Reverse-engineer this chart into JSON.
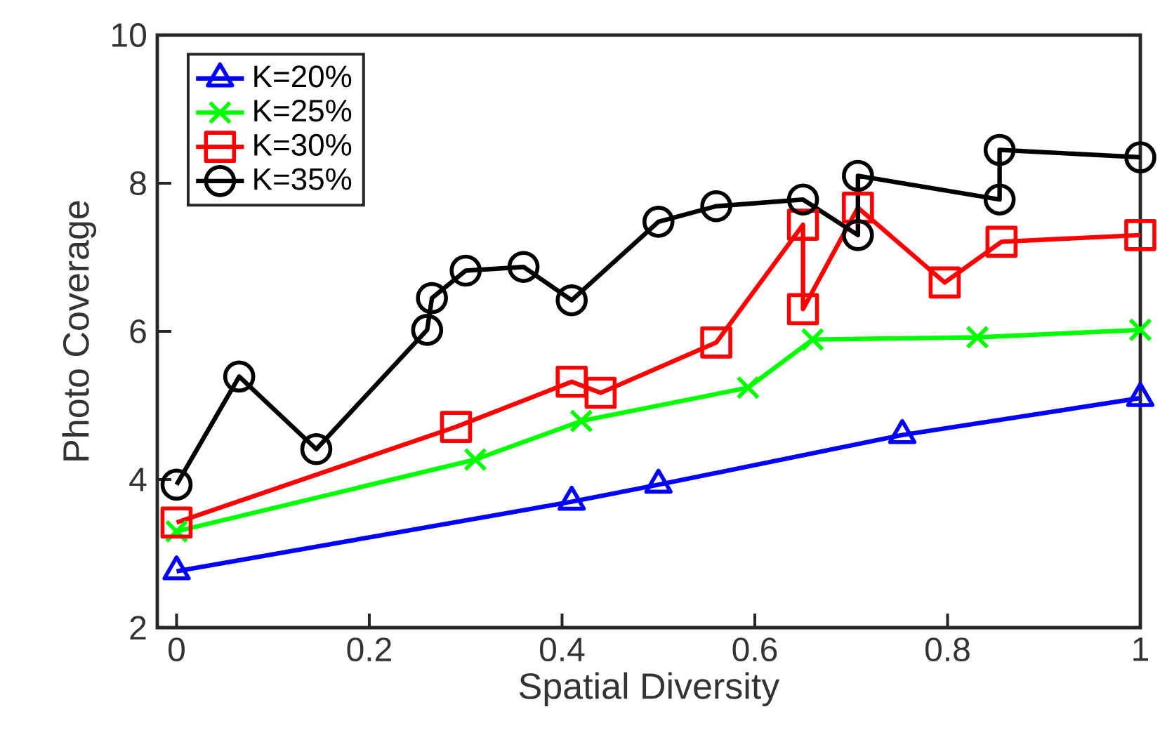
{
  "chart_data": {
    "type": "line",
    "xlabel": "Spatial Diversity",
    "ylabel": "Photo Coverage",
    "xlim": [
      -0.02,
      1.0
    ],
    "ylim": [
      2,
      10
    ],
    "xticks": [
      0,
      0.2,
      0.4,
      0.6,
      0.8,
      1
    ],
    "yticks": [
      2,
      4,
      6,
      8,
      10
    ],
    "legend": "top left",
    "grid": false,
    "series": [
      {
        "name": "K=20%",
        "color": "#0000ff",
        "marker": "triangle",
        "x": [
          0,
          0.41,
          0.5,
          0.753,
          1.0
        ],
        "values": [
          2.76,
          3.7,
          3.93,
          4.6,
          5.1
        ]
      },
      {
        "name": "K=25%",
        "color": "#00ff00",
        "marker": "cross",
        "x": [
          0,
          0.31,
          0.42,
          0.593,
          0.66,
          0.831,
          1.0
        ],
        "values": [
          3.3,
          4.27,
          4.79,
          5.24,
          5.89,
          5.92,
          6.02
        ]
      },
      {
        "name": "K=30%",
        "color": "#ff0000",
        "marker": "square",
        "x": [
          0,
          0.29,
          0.41,
          0.44,
          0.56,
          0.65,
          0.65,
          0.707,
          0.797,
          0.856,
          1.0
        ],
        "values": [
          3.42,
          4.71,
          5.32,
          5.17,
          5.85,
          7.44,
          6.3,
          7.67,
          6.66,
          7.21,
          7.3
        ]
      },
      {
        "name": "K=35%",
        "color": "#000000",
        "marker": "circle",
        "x": [
          0,
          0.065,
          0.145,
          0.26,
          0.265,
          0.3,
          0.36,
          0.41,
          0.5,
          0.56,
          0.65,
          0.707,
          0.707,
          0.854,
          0.854,
          1.0
        ],
        "values": [
          3.93,
          5.39,
          4.41,
          6.02,
          6.45,
          6.82,
          6.87,
          6.42,
          7.48,
          7.69,
          7.78,
          7.3,
          8.1,
          7.78,
          8.45,
          8.35
        ]
      }
    ]
  }
}
